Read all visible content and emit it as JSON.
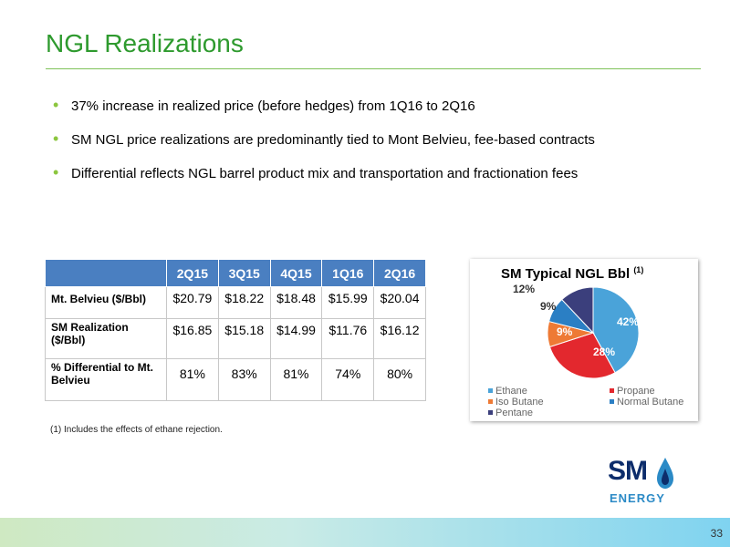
{
  "title": "NGL Realizations",
  "bullets": [
    "37% increase in realized price (before hedges) from 1Q16 to 2Q16",
    "SM NGL price realizations are predominantly tied to Mont Belvieu, fee-based contracts",
    "Differential reflects NGL barrel product mix and transportation and fractionation fees"
  ],
  "table": {
    "headers": [
      "2Q15",
      "3Q15",
      "4Q15",
      "1Q16",
      "2Q16"
    ],
    "rows": [
      {
        "label": "Mt. Belvieu ($/Bbl)",
        "values": [
          "$20.79",
          "$18.22",
          "$18.48",
          "$15.99",
          "$20.04"
        ]
      },
      {
        "label": "SM Realization ($/Bbl)",
        "values": [
          "$16.85",
          "$15.18",
          "$14.99",
          "$11.76",
          "$16.12"
        ]
      },
      {
        "label": "% Differential to Mt. Belvieu",
        "values": [
          "81%",
          "83%",
          "81%",
          "74%",
          "80%"
        ]
      }
    ]
  },
  "footnote": "(1)   Includes the effects of ethane rejection.",
  "chart_data": {
    "type": "pie",
    "title": "SM Typical NGL Bbl",
    "title_sup": "(1)",
    "slices": [
      {
        "name": "Ethane",
        "value": 42,
        "label": "42%",
        "color": "#4aa3d9"
      },
      {
        "name": "Propane",
        "value": 28,
        "label": "28%",
        "color": "#e3282e"
      },
      {
        "name": "Iso Butane",
        "value": 9,
        "label": "9%",
        "color": "#ee7a35"
      },
      {
        "name": "Normal Butane",
        "value": 9,
        "label": "9%",
        "color": "#2b7fc4"
      },
      {
        "name": "Pentane",
        "value": 12,
        "label": "12%",
        "color": "#3b3f7c"
      }
    ],
    "legend_position": "bottom"
  },
  "logo": {
    "top": "SM",
    "bottom": "ENERGY"
  },
  "page_number": "33",
  "colors": {
    "title": "#2e9a2e",
    "header_bg": "#4a7fc1",
    "bullet": "#8cc63f"
  }
}
